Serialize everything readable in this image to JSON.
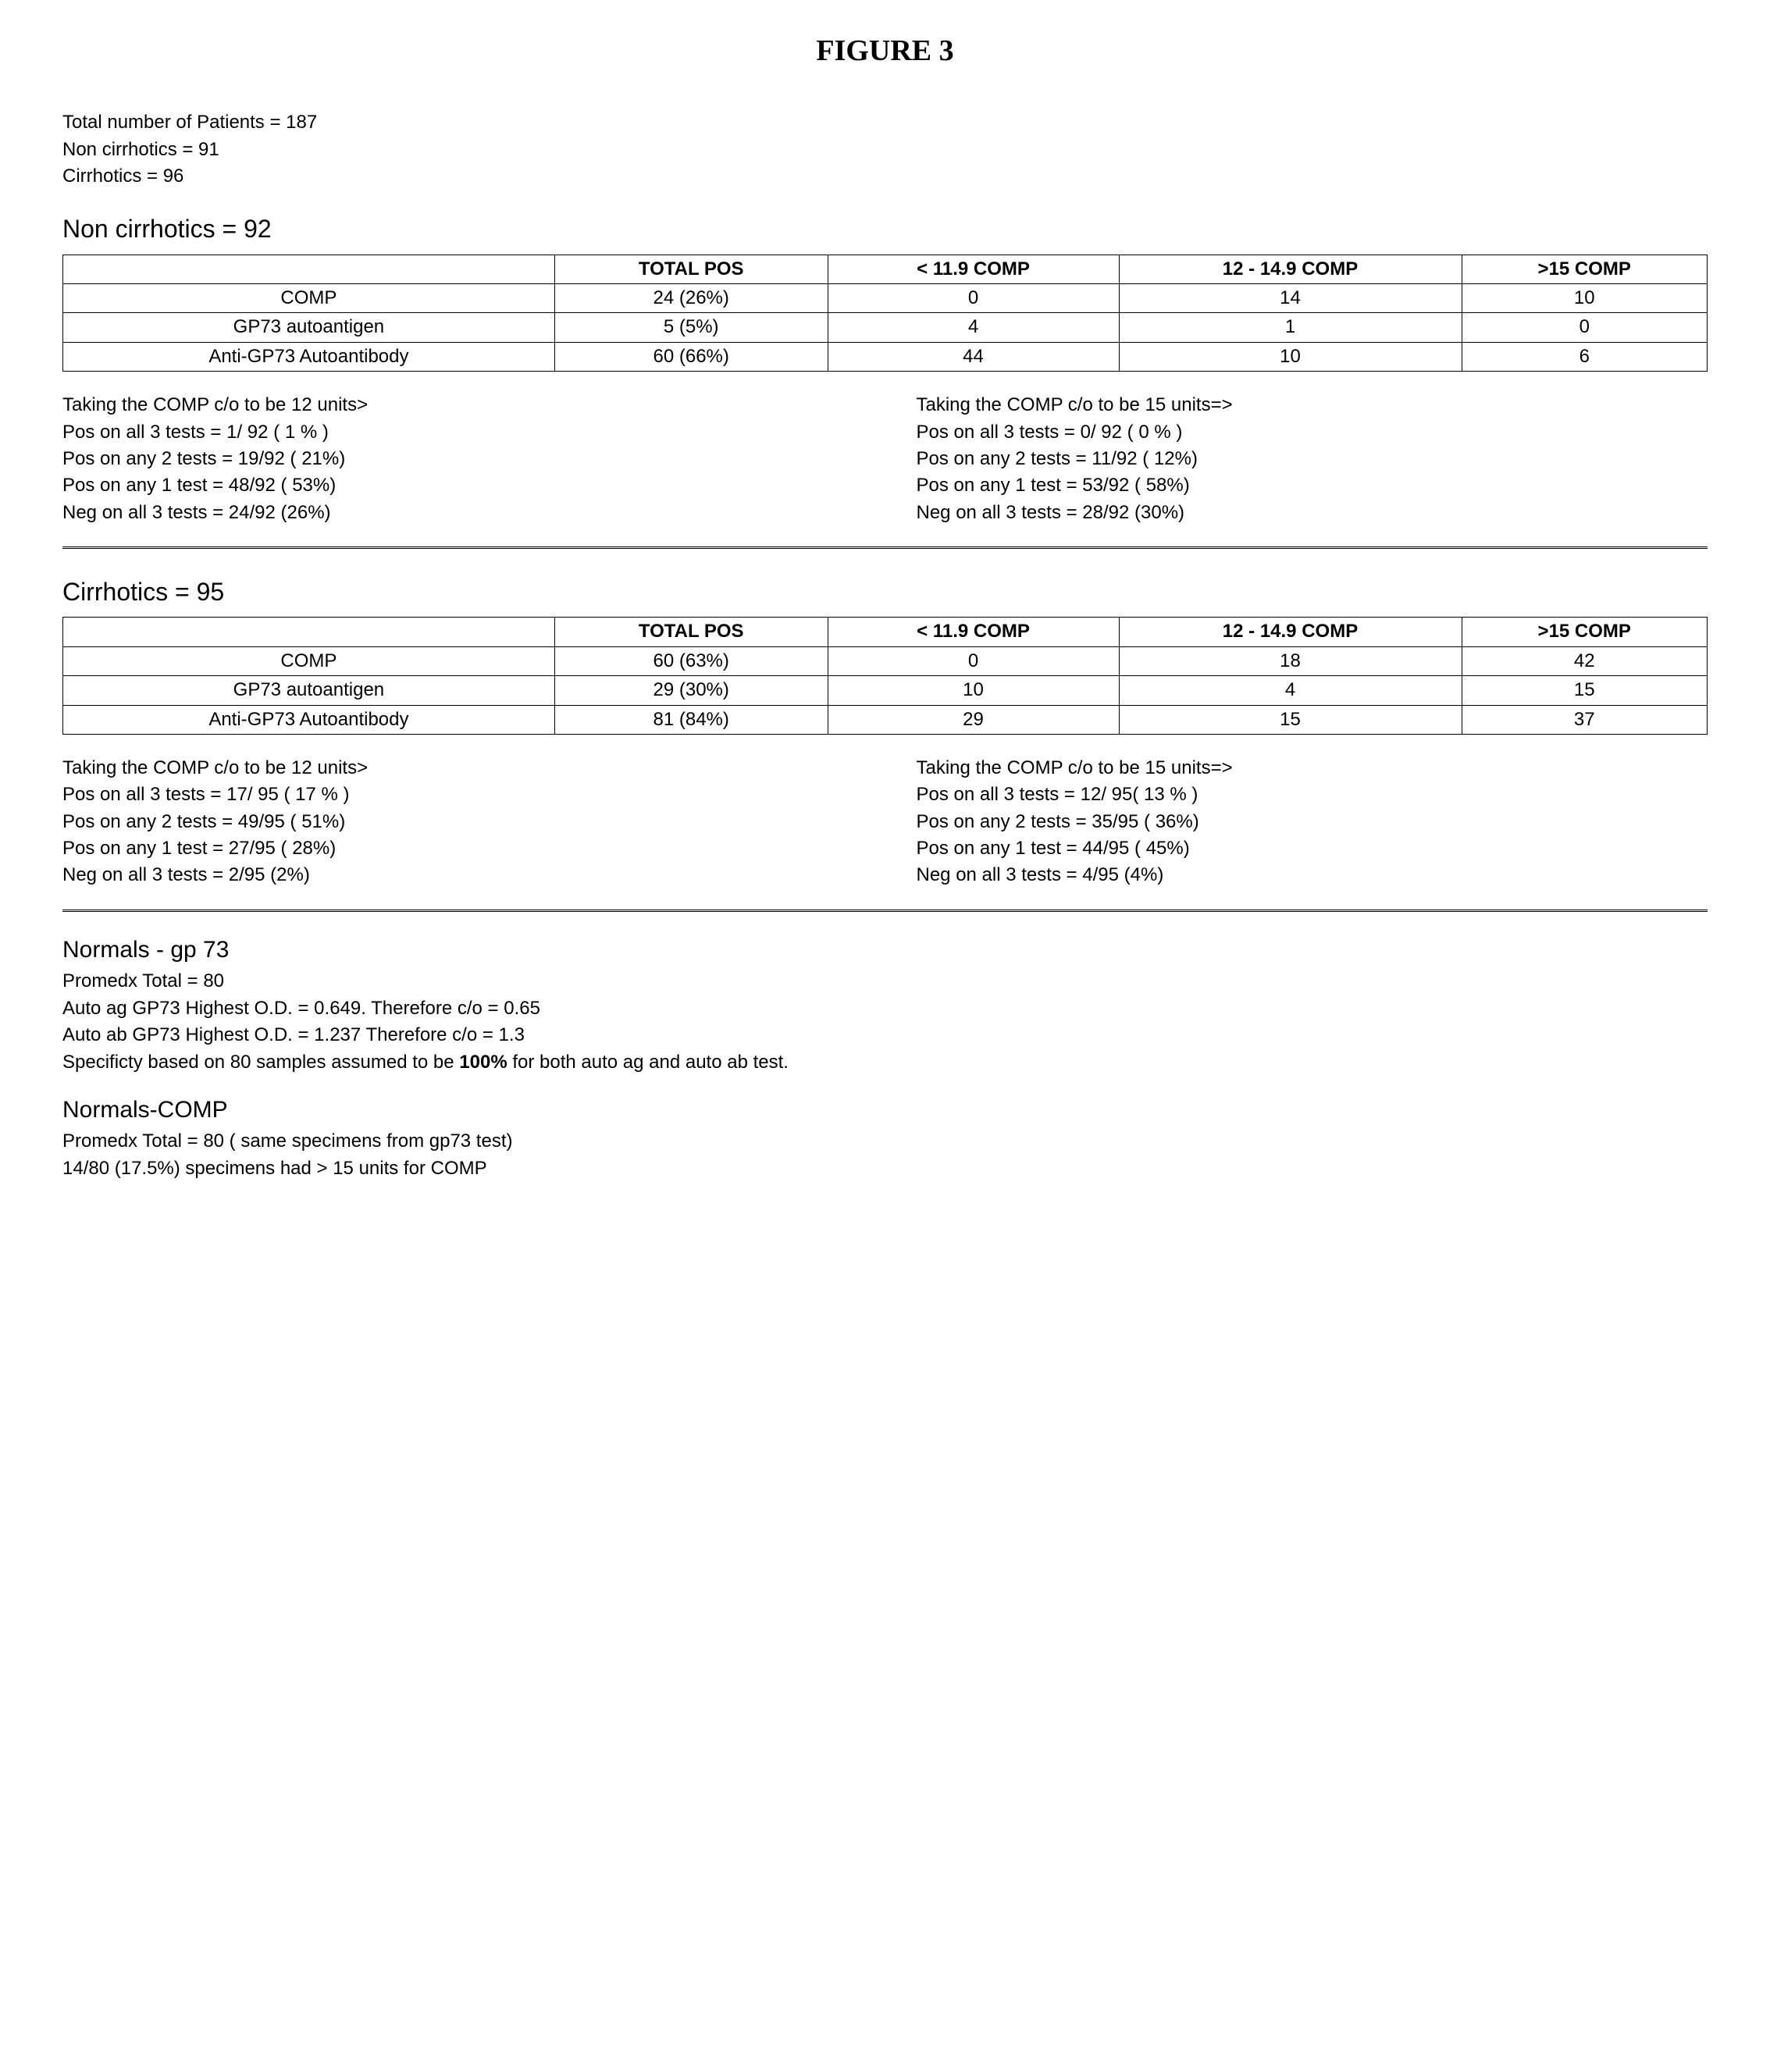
{
  "figure_title": "FIGURE 3",
  "intro": {
    "line1": "Total number of Patients = 187",
    "line2": "Non cirrhotics = 91",
    "line3": "Cirrhotics = 96"
  },
  "noncirr": {
    "heading": "Non cirrhotics = 92",
    "cols": [
      "",
      "TOTAL POS",
      "< 11.9 COMP",
      "12 - 14.9 COMP",
      ">15 COMP"
    ],
    "rows": [
      [
        "COMP",
        "24 (26%)",
        "0",
        "14",
        "10"
      ],
      [
        "GP73 autoantigen",
        "5 (5%)",
        "4",
        "1",
        "0"
      ],
      [
        "Anti-GP73 Autoantibody",
        "60 (66%)",
        "44",
        "10",
        "6"
      ]
    ],
    "left_block": [
      "Taking the COMP c/o to be 12 units>",
      "Pos on all 3 tests = 1/  92 ( 1 % )",
      "Pos on any 2 tests = 19/92 ( 21%)",
      "Pos on any 1 test = 48/92 ( 53%)",
      "Neg on all 3 tests = 24/92 (26%)"
    ],
    "right_block": [
      "Taking the COMP c/o to be 15 units=>",
      "Pos on all 3 tests = 0/  92 ( 0 % )",
      "Pos on any 2 tests = 11/92 ( 12%)",
      "Pos on any 1 test = 53/92 ( 58%)",
      "Neg on all 3 tests = 28/92 (30%)"
    ]
  },
  "cirr": {
    "heading": "Cirrhotics = 95",
    "cols": [
      "",
      "TOTAL POS",
      "< 11.9 COMP",
      "12 - 14.9 COMP",
      ">15 COMP"
    ],
    "rows": [
      [
        "COMP",
        "60 (63%)",
        "0",
        "18",
        "42"
      ],
      [
        "GP73 autoantigen",
        "29 (30%)",
        "10",
        "4",
        "15"
      ],
      [
        "Anti-GP73 Autoantibody",
        "81 (84%)",
        "29",
        "15",
        "37"
      ]
    ],
    "left_block": [
      "Taking the COMP c/o to be 12 units>",
      "Pos on all 3 tests = 17/ 95 ( 17 % )",
      "Pos on any 2 tests = 49/95 ( 51%)",
      "Pos on any 1 test = 27/95 ( 28%)",
      "Neg on all 3 tests = 2/95 (2%)"
    ],
    "right_block": [
      "Taking the COMP c/o to be 15 units=>",
      "Pos on all 3 tests = 12/ 95( 13 % )",
      "Pos on any 2 tests = 35/95 ( 36%)",
      "Pos on any 1 test = 44/95 ( 45%)",
      "Neg on all 3 tests = 4/95 (4%)"
    ]
  },
  "normals_gp73": {
    "heading": "Normals - gp 73",
    "lines": [
      "Promedx Total = 80",
      "Auto ag GP73 Highest O.D. = 0.649. Therefore c/o = 0.65",
      "Auto ab  GP73 Highest O.D. = 1.237 Therefore c/o = 1.3"
    ],
    "spec_prefix": "Specificty based on 80 samples assumed to be ",
    "spec_bold": "100%",
    "spec_suffix": " for both auto ag and auto ab test."
  },
  "normals_comp": {
    "heading": "Normals-COMP",
    "lines": [
      "Promedx Total = 80 ( same specimens from gp73 test)",
      "14/80 (17.5%) specimens had > 15 units for COMP"
    ]
  }
}
